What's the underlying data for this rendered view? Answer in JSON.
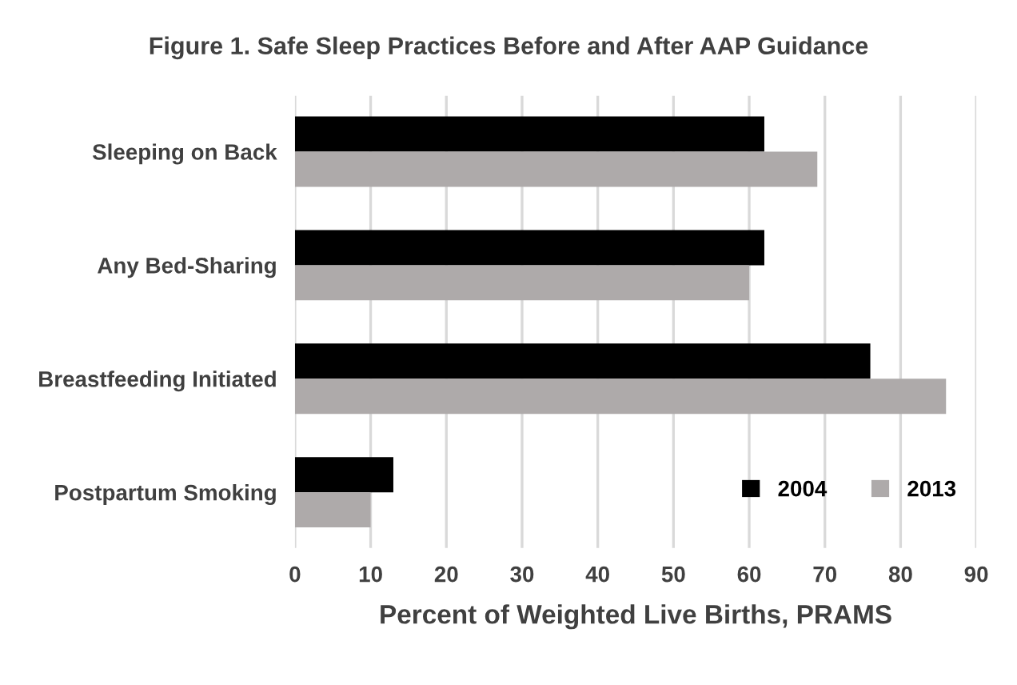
{
  "chart_data": {
    "type": "bar",
    "orientation": "horizontal",
    "title": "Figure 1. Safe Sleep Practices Before and After AAP Guidance",
    "xlabel": "Percent of Weighted Live Births, PRAMS",
    "categories": [
      "Sleeping on Back",
      "Any Bed-Sharing",
      "Breastfeeding Initiated",
      "Postpartum Smoking"
    ],
    "series": [
      {
        "name": "2004",
        "color": "#000000",
        "values": [
          62,
          62,
          76,
          13
        ]
      },
      {
        "name": "2013",
        "color": "#aeaaaa",
        "values": [
          69,
          60,
          86,
          10
        ]
      }
    ],
    "xlim": [
      0,
      90
    ],
    "xticks": [
      0,
      10,
      20,
      30,
      40,
      50,
      60,
      70,
      80,
      90
    ],
    "grid": "x",
    "legend": "bottom right"
  }
}
